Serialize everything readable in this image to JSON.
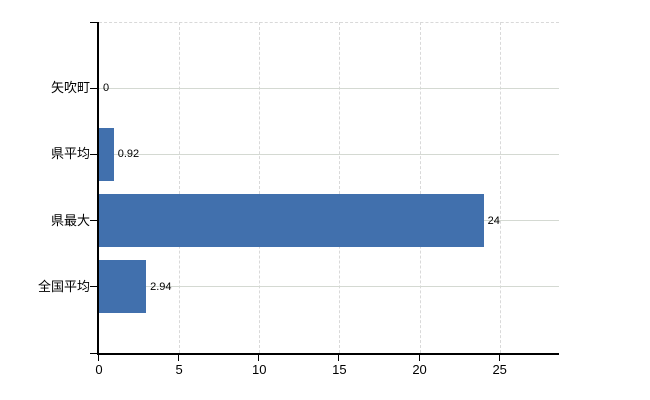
{
  "chart_data": {
    "type": "bar",
    "orientation": "horizontal",
    "title": "",
    "xlabel": "",
    "ylabel": "",
    "categories": [
      "矢吹町",
      "県平均",
      "県最大",
      "全国平均"
    ],
    "values": [
      0,
      0.92,
      24,
      2.94
    ],
    "value_labels": [
      "0",
      "0.92",
      "24",
      "2.94"
    ],
    "xlim": [
      0,
      28.7
    ],
    "xticks": [
      0,
      5,
      10,
      15,
      20,
      25
    ],
    "xtick_labels": [
      "0",
      "5",
      "10",
      "15",
      "20",
      "25"
    ],
    "grid": true,
    "legend": "none",
    "colors": {
      "bar": "#4170ad",
      "axis": "#000000",
      "h_gridline": "#d4d9d2",
      "v_gridline_dashed": "#d9d9d9",
      "text": "#000000",
      "background": "#ffffff"
    }
  }
}
